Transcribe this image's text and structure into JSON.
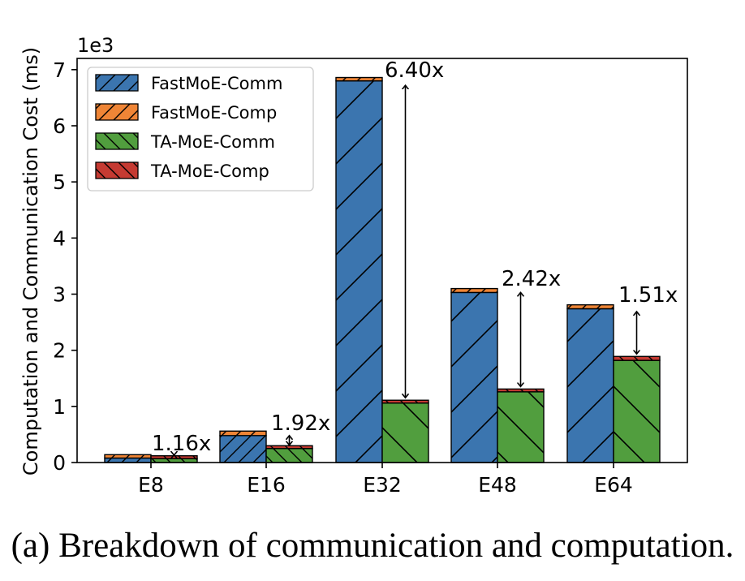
{
  "chart_data": {
    "type": "bar",
    "stacked": true,
    "grouped": true,
    "categories": [
      "E8",
      "E16",
      "E32",
      "E48",
      "E64"
    ],
    "multiplier_label": "1e3",
    "ylabel": "Computation and Communication Cost (ms)",
    "ylim": [
      0,
      7.2
    ],
    "yticks": [
      0,
      1,
      2,
      3,
      4,
      5,
      6,
      7
    ],
    "legend_position": "upper-left",
    "series": [
      {
        "name": "FastMoE-Comm",
        "group": "FastMoE",
        "color": "#3b75af",
        "hatch": "/",
        "values": [
          0.08,
          0.48,
          6.8,
          3.03,
          2.74
        ]
      },
      {
        "name": "FastMoE-Comp",
        "group": "FastMoE",
        "color": "#ef8536",
        "hatch": "/",
        "values": [
          0.06,
          0.08,
          0.06,
          0.07,
          0.07
        ]
      },
      {
        "name": "TA-MoE-Comm",
        "group": "TA-MoE",
        "color": "#519e3e",
        "hatch": "\\",
        "values": [
          0.07,
          0.25,
          1.06,
          1.26,
          1.82
        ]
      },
      {
        "name": "TA-MoE-Comp",
        "group": "TA-MoE",
        "color": "#c53a32",
        "hatch": "\\",
        "values": [
          0.05,
          0.05,
          0.05,
          0.05,
          0.07
        ]
      }
    ],
    "annotations": [
      "1.16x",
      "1.92x",
      "6.40x",
      "2.42x",
      "1.51x"
    ],
    "caption": "(a) Breakdown of communication and computation."
  }
}
